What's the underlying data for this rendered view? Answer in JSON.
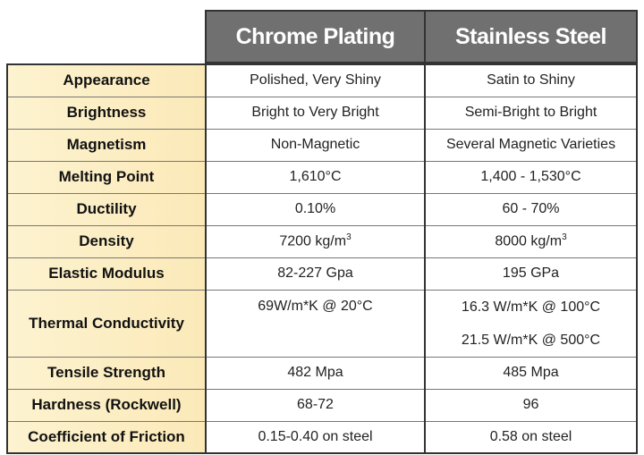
{
  "columns": [
    "Chrome Plating",
    "Stainless Steel"
  ],
  "rows": [
    {
      "label": "Appearance",
      "chrome": "Polished, Very Shiny",
      "steel": "Satin to Shiny"
    },
    {
      "label": "Brightness",
      "chrome": "Bright to Very Bright",
      "steel": "Semi-Bright to Bright"
    },
    {
      "label": "Magnetism",
      "chrome": "Non-Magnetic",
      "steel": "Several Magnetic Varieties"
    },
    {
      "label": "Melting Point",
      "chrome": "1,610°C",
      "steel": "1,400 - 1,530°C"
    },
    {
      "label": "Ductility",
      "chrome": "0.10%",
      "steel": "60 - 70%"
    },
    {
      "label": "Density",
      "chrome": "7200 kg/m",
      "chrome_sup": "3",
      "steel": "8000 kg/m",
      "steel_sup": "3"
    },
    {
      "label": "Elastic Modulus",
      "chrome": "82-227 Gpa",
      "steel": "195 GPa"
    },
    {
      "label": "Thermal Conductivity",
      "chrome": "69W/m*K @ 20°C",
      "steel": "16.3 W/m*K @ 100°C",
      "steel2": "21.5 W/m*K @ 500°C"
    },
    {
      "label": "Tensile Strength",
      "chrome": "482 Mpa",
      "steel": "485 Mpa"
    },
    {
      "label": "Hardness  (Rockwell)",
      "chrome": "68-72",
      "steel": "96"
    },
    {
      "label": "Coefficient of Friction",
      "chrome": "0.15-0.40 on steel",
      "steel": "0.58 on steel"
    }
  ],
  "colors": {
    "header_bg": "#707070",
    "label_bg": "#fcefc6"
  }
}
